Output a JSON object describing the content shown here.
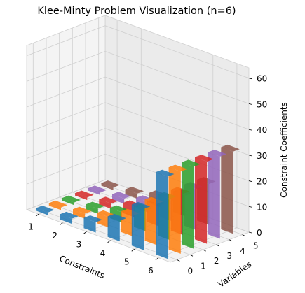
{
  "chart_data": {
    "type": "bar3d",
    "title": "Klee-Minty Problem Visualization (n=6)",
    "xlabel": "Constraints",
    "ylabel": "Variables",
    "zlabel": "Constraint Coefficients",
    "x_ticks": [
      "1",
      "2",
      "3",
      "4",
      "5",
      "6"
    ],
    "y_ticks": [
      "0",
      "1",
      "2",
      "3",
      "4",
      "5"
    ],
    "z_ticks": [
      "0",
      "10",
      "20",
      "30",
      "40",
      "50",
      "60"
    ],
    "zlim": [
      0,
      64
    ],
    "grid": true,
    "series": [
      {
        "variable": 0,
        "color": "#1f77b4",
        "values": [
          1,
          2,
          4,
          8,
          16,
          32
        ]
      },
      {
        "variable": 1,
        "color": "#ff7f0e",
        "values": [
          1,
          2,
          4,
          8,
          16,
          32
        ]
      },
      {
        "variable": 2,
        "color": "#2ca02c",
        "values": [
          1,
          2,
          4,
          8,
          16,
          32
        ]
      },
      {
        "variable": 3,
        "color": "#d62728",
        "values": [
          1,
          2,
          4,
          8,
          16,
          32
        ]
      },
      {
        "variable": 4,
        "color": "#9467bd",
        "values": [
          1,
          2,
          4,
          8,
          16,
          32
        ]
      },
      {
        "variable": 5,
        "color": "#8c564b",
        "values": [
          1,
          2,
          4,
          8,
          16,
          32
        ]
      }
    ]
  }
}
